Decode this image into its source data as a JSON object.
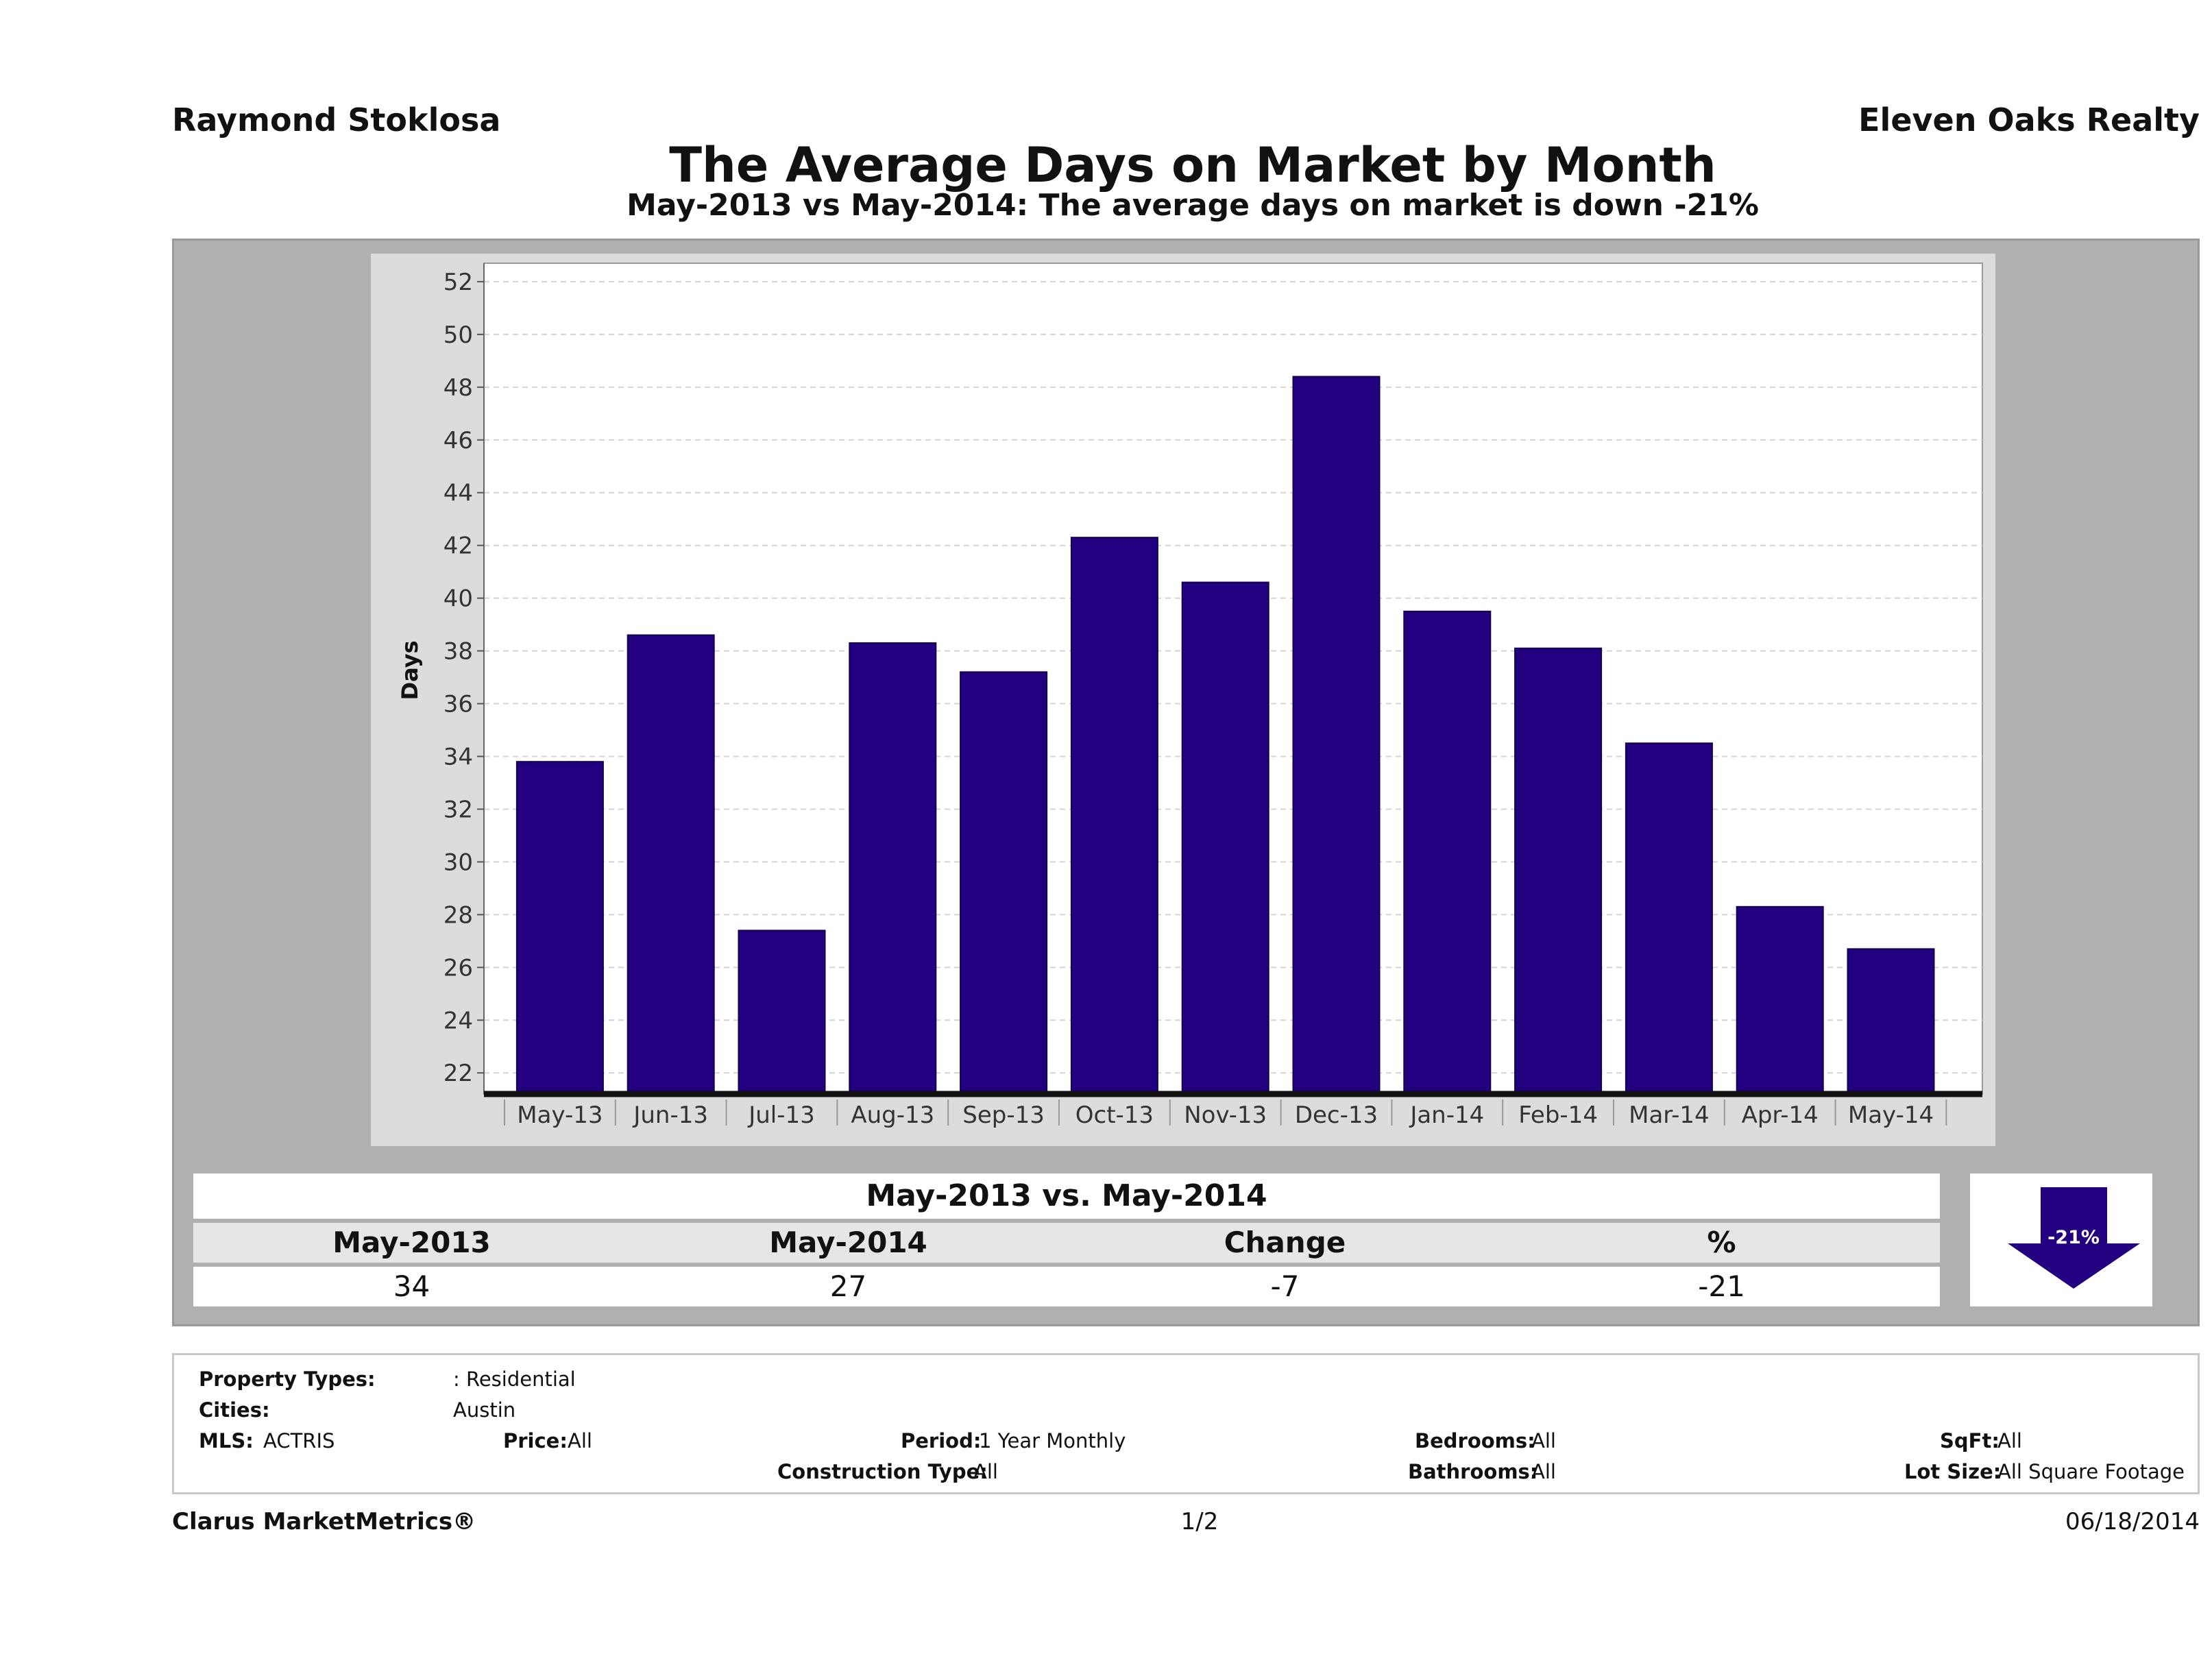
{
  "header": {
    "agent": "Raymond Stoklosa",
    "company": "Eleven Oaks Realty",
    "title": "The Average Days on Market by Month",
    "subtitle": "May-2013 vs May-2014: The average days on market is down -21%"
  },
  "chart_data": {
    "type": "bar",
    "categories": [
      "May-13",
      "Jun-13",
      "Jul-13",
      "Aug-13",
      "Sep-13",
      "Oct-13",
      "Nov-13",
      "Dec-13",
      "Jan-14",
      "Feb-14",
      "Mar-14",
      "Apr-14",
      "May-14"
    ],
    "values": [
      33.8,
      38.6,
      27.4,
      38.3,
      37.2,
      42.3,
      40.6,
      48.4,
      39.5,
      38.1,
      34.5,
      28.3,
      26.7
    ],
    "ylabel": "Days",
    "xlabel": "",
    "ylim": [
      21.2,
      52.7
    ],
    "yticks": [
      22,
      24,
      26,
      28,
      30,
      32,
      34,
      36,
      38,
      40,
      42,
      44,
      46,
      48,
      50,
      52
    ],
    "grid": true,
    "colors": {
      "bar": "#22007f",
      "bar_edge": "#15004d",
      "plot_bg": "#ffffff",
      "grid": "#d4d4d4"
    }
  },
  "summary": {
    "heading": "May-2013 vs. May-2014",
    "columns": [
      "May-2013",
      "May-2014",
      "Change",
      "%"
    ],
    "values": [
      "34",
      "27",
      "-7",
      "-21"
    ],
    "badge": "-21%",
    "badge_color": "#22007f"
  },
  "criteria": {
    "property_types_label": "Property Types:",
    "property_types_value": ": Residential",
    "cities_label": "Cities:",
    "cities_value": "Austin",
    "mls_label": "MLS:",
    "mls_value": "ACTRIS",
    "price_label": "Price:",
    "price_value": "All",
    "period_label": "Period:",
    "period_value": "1 Year Monthly",
    "construction_label": "Construction Type:",
    "construction_value": "All",
    "bedrooms_label": "Bedrooms:",
    "bedrooms_value": "All",
    "bathrooms_label": "Bathrooms:",
    "bathrooms_value": "All",
    "sqft_label": "SqFt:",
    "sqft_value": "All",
    "lot_label": "Lot Size:",
    "lot_value": "All Square Footage"
  },
  "footer": {
    "brand": "Clarus MarketMetrics®",
    "page": "1/2",
    "date": "06/18/2014"
  }
}
